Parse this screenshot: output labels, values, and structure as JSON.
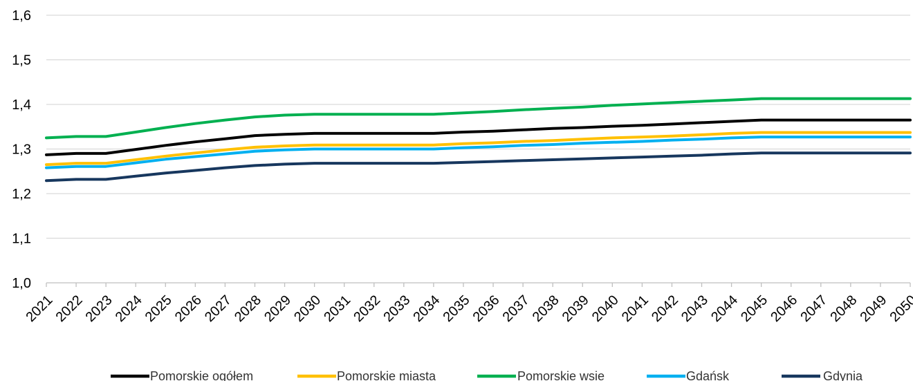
{
  "chart_data": {
    "type": "line",
    "title": "",
    "xlabel": "",
    "ylabel": "",
    "x": [
      "2021",
      "2022",
      "2023",
      "2024",
      "2025",
      "2026",
      "2027",
      "2028",
      "2029",
      "2030",
      "2031",
      "2032",
      "2033",
      "2034",
      "2035",
      "2036",
      "2037",
      "2038",
      "2039",
      "2040",
      "2041",
      "2042",
      "2043",
      "2044",
      "2045",
      "2046",
      "2047",
      "2048",
      "2049",
      "2050"
    ],
    "ylim": [
      1.0,
      1.6
    ],
    "yticks": [
      "1,0",
      "1,1",
      "1,2",
      "1,3",
      "1,4",
      "1,5",
      "1,6"
    ],
    "ytick_values": [
      1.0,
      1.1,
      1.2,
      1.3,
      1.4,
      1.5,
      1.6
    ],
    "grid": true,
    "legend_position": "bottom",
    "series": [
      {
        "name": "Pomorskie ogółem",
        "color": "#000000",
        "values": [
          1.287,
          1.29,
          1.29,
          1.299,
          1.308,
          1.316,
          1.323,
          1.33,
          1.333,
          1.335,
          1.335,
          1.335,
          1.335,
          1.335,
          1.338,
          1.34,
          1.343,
          1.346,
          1.348,
          1.351,
          1.353,
          1.356,
          1.359,
          1.362,
          1.365,
          1.365,
          1.365,
          1.365,
          1.365,
          1.365
        ]
      },
      {
        "name": "Pomorskie miasta",
        "color": "#ffc000",
        "values": [
          1.265,
          1.268,
          1.268,
          1.276,
          1.284,
          1.291,
          1.298,
          1.304,
          1.307,
          1.309,
          1.309,
          1.309,
          1.309,
          1.309,
          1.312,
          1.314,
          1.317,
          1.319,
          1.322,
          1.325,
          1.327,
          1.329,
          1.332,
          1.335,
          1.337,
          1.337,
          1.337,
          1.337,
          1.337,
          1.337
        ]
      },
      {
        "name": "Pomorskie wsie",
        "color": "#00b050",
        "values": [
          1.325,
          1.328,
          1.328,
          1.338,
          1.348,
          1.357,
          1.365,
          1.372,
          1.376,
          1.378,
          1.378,
          1.378,
          1.378,
          1.378,
          1.381,
          1.384,
          1.388,
          1.391,
          1.394,
          1.398,
          1.401,
          1.404,
          1.407,
          1.41,
          1.413,
          1.413,
          1.413,
          1.413,
          1.413,
          1.413
        ]
      },
      {
        "name": "Gdańsk",
        "color": "#00b0f0",
        "values": [
          1.258,
          1.261,
          1.261,
          1.269,
          1.277,
          1.283,
          1.289,
          1.295,
          1.298,
          1.3,
          1.3,
          1.3,
          1.3,
          1.3,
          1.303,
          1.305,
          1.308,
          1.31,
          1.313,
          1.315,
          1.317,
          1.32,
          1.322,
          1.325,
          1.327,
          1.327,
          1.327,
          1.327,
          1.327,
          1.327
        ]
      },
      {
        "name": "Gdynia",
        "color": "#17375e",
        "values": [
          1.229,
          1.232,
          1.232,
          1.239,
          1.246,
          1.252,
          1.258,
          1.263,
          1.266,
          1.268,
          1.268,
          1.268,
          1.268,
          1.268,
          1.27,
          1.272,
          1.274,
          1.276,
          1.278,
          1.28,
          1.282,
          1.284,
          1.286,
          1.289,
          1.291,
          1.291,
          1.291,
          1.291,
          1.291,
          1.291
        ]
      }
    ]
  }
}
